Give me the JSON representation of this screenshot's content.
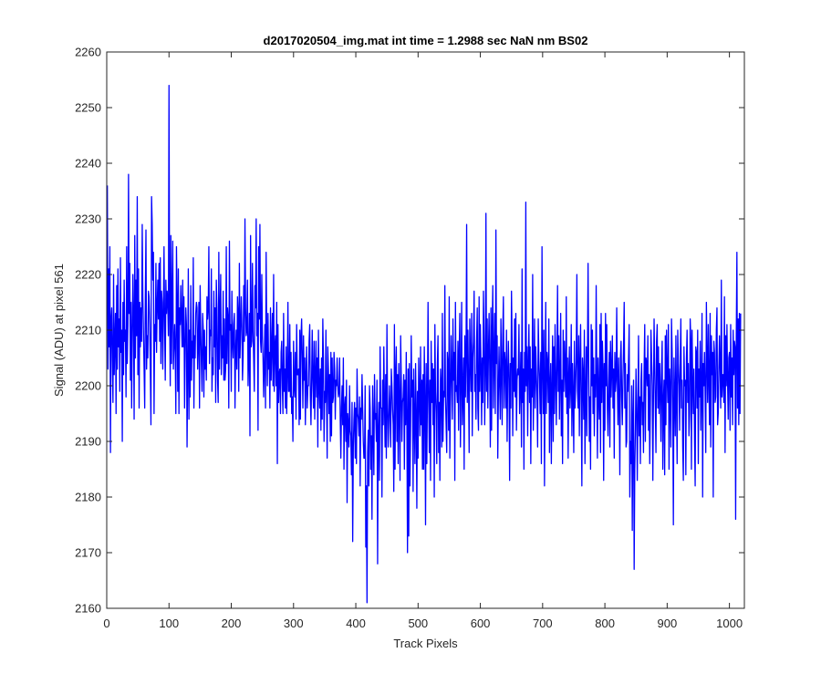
{
  "chart_data": {
    "type": "line",
    "title": "d2017020504_img.mat int time = 1.2988 sec  NaN nm BS02",
    "xlabel": "Track Pixels",
    "ylabel": "Signal (ADU) at pixel 561",
    "xlim": [
      0,
      1024
    ],
    "ylim": [
      2160,
      2260
    ],
    "xticks": [
      0,
      100,
      200,
      300,
      400,
      500,
      600,
      700,
      800,
      900,
      1000
    ],
    "yticks": [
      2160,
      2170,
      2180,
      2190,
      2200,
      2210,
      2220,
      2230,
      2240,
      2250,
      2260
    ],
    "grid": false,
    "series": [
      {
        "color": "#0000ff",
        "x_start": 1,
        "x_step": 1,
        "values": [
          2236,
          2203,
          2221,
          2207,
          2225,
          2188,
          2212,
          2214,
          2205,
          2197,
          2220,
          2202,
          2208,
          2213,
          2195,
          2218,
          2203,
          2221,
          2207,
          2212,
          2199,
          2223,
          2206,
          2210,
          2190,
          2215,
          2202,
          2219,
          2208,
          2210,
          2198,
          2225,
          2204,
          2211,
          2238,
          2213,
          2222,
          2201,
          2215,
          2196,
          2209,
          2220,
          2212,
          2194,
          2227,
          2205,
          2219,
          2209,
          2234,
          2202,
          2221,
          2196,
          2215,
          2207,
          2214,
          2208,
          2229,
          2216,
          2210,
          2203,
          2196,
          2216,
          2228,
          2203,
          2209,
          2205,
          2217,
          2216,
          2211,
          2203,
          2193,
          2234,
          2229,
          2219,
          2224,
          2195,
          2211,
          2208,
          2222,
          2206,
          2214,
          2219,
          2212,
          2222,
          2208,
          2223,
          2204,
          2217,
          2215,
          2203,
          2213,
          2225,
          2211,
          2201,
          2219,
          2213,
          2217,
          2215,
          2209,
          2254,
          2213,
          2200,
          2227,
          2204,
          2216,
          2226,
          2203,
          2207,
          2211,
          2206,
          2195,
          2225,
          2215,
          2199,
          2221,
          2195,
          2214,
          2211,
          2218,
          2212,
          2207,
          2219,
          2207,
          2216,
          2196,
          2206,
          2214,
          2211,
          2189,
          2203,
          2221,
          2194,
          2210,
          2198,
          2218,
          2201,
          2208,
          2205,
          2223,
          2196,
          2209,
          2205,
          2213,
          2215,
          2214,
          2203,
          2208,
          2215,
          2196,
          2218,
          2210,
          2204,
          2199,
          2213,
          2210,
          2198,
          2210,
          2203,
          2207,
          2201,
          2216,
          2212,
          2214,
          2225,
          2204,
          2210,
          2209,
          2221,
          2199,
          2205,
          2202,
          2217,
          2207,
          2214,
          2197,
          2219,
          2214,
          2201,
          2197,
          2224,
          2203,
          2213,
          2220,
          2202,
          2209,
          2205,
          2217,
          2201,
          2212,
          2201,
          2203,
          2225,
          2204,
          2214,
          2212,
          2196,
          2226,
          2210,
          2211,
          2199,
          2217,
          2208,
          2205,
          2211,
          2213,
          2196,
          2206,
          2210,
          2203,
          2216,
          2213,
          2199,
          2222,
          2205,
          2210,
          2216,
          2211,
          2201,
          2205,
          2218,
          2208,
          2230,
          2214,
          2209,
          2210,
          2219,
          2200,
          2205,
          2213,
          2191,
          2227,
          2207,
          2208,
          2222,
          2210,
          2205,
          2199,
          2218,
          2214,
          2230,
          2209,
          2213,
          2192,
          2225,
          2212,
          2229,
          2208,
          2206,
          2220,
          2209,
          2205,
          2198,
          2204,
          2211,
          2196,
          2224,
          2208,
          2200,
          2213,
          2203,
          2206,
          2196,
          2214,
          2201,
          2207,
          2213,
          2200,
          2220,
          2199,
          2207,
          2209,
          2200,
          2215,
          2186,
          2211,
          2197,
          2202,
          2203,
          2195,
          2206,
          2208,
          2200,
          2195,
          2213,
          2199,
          2203,
          2196,
          2207,
          2195,
          2202,
          2215,
          2199,
          2199,
          2211,
          2198,
          2206,
          2195,
          2198,
          2190,
          2208,
          2200,
          2198,
          2206,
          2194,
          2211,
          2202,
          2202,
          2203,
          2193,
          2210,
          2194,
          2209,
          2212,
          2205,
          2196,
          2209,
          2201,
          2205,
          2193,
          2202,
          2207,
          2196,
          2200,
          2200,
          2208,
          2211,
          2198,
          2193,
          2201,
          2210,
          2201,
          2196,
          2208,
          2194,
          2202,
          2208,
          2198,
          2205,
          2189,
          2210,
          2200,
          2196,
          2203,
          2192,
          2205,
          2194,
          2212,
          2205,
          2190,
          2199,
          2197,
          2210,
          2198,
          2187,
          2207,
          2203,
          2195,
          2202,
          2190,
          2206,
          2191,
          2205,
          2197,
          2198,
          2206,
          2203,
          2194,
          2201,
          2200,
          2205,
          2200,
          2198,
          2199,
          2205,
          2194,
          2187,
          2196,
          2200,
          2193,
          2205,
          2185,
          2196,
          2198,
          2190,
          2201,
          2179,
          2195,
          2193,
          2189,
          2200,
          2192,
          2191,
          2184,
          2197,
          2172,
          2189,
          2194,
          2197,
          2187,
          2196,
          2186,
          2203,
          2195,
          2194,
          2191,
          2198,
          2182,
          2196,
          2194,
          2202,
          2196,
          2190,
          2187,
          2187,
          2200,
          2171,
          2182,
          2161,
          2188,
          2192,
          2182,
          2200,
          2196,
          2185,
          2191,
          2176,
          2200,
          2193,
          2184,
          2202,
          2194,
          2195,
          2190,
          2201,
          2168,
          2192,
          2197,
          2183,
          2207,
          2196,
          2196,
          2180,
          2201,
          2193,
          2207,
          2197,
          2189,
          2202,
          2187,
          2211,
          2196,
          2189,
          2194,
          2200,
          2195,
          2189,
          2203,
          2200,
          2196,
          2193,
          2181,
          2211,
          2185,
          2202,
          2207,
          2190,
          2202,
          2186,
          2204,
          2197,
          2183,
          2209,
          2201,
          2190,
          2197,
          2198,
          2202,
          2185,
          2201,
          2193,
          2206,
          2194,
          2170,
          2203,
          2173,
          2204,
          2182,
          2193,
          2209,
          2198,
          2201,
          2181,
          2203,
          2194,
          2186,
          2204,
          2195,
          2178,
          2199,
          2187,
          2205,
          2198,
          2191,
          2207,
          2193,
          2201,
          2185,
          2202,
          2185,
          2207,
          2197,
          2175,
          2204,
          2186,
          2198,
          2215,
          2198,
          2188,
          2201,
          2183,
          2208,
          2197,
          2204,
          2193,
          2203,
          2180,
          2211,
          2199,
          2195,
          2186,
          2204,
          2209,
          2188,
          2197,
          2183,
          2203,
          2200,
          2189,
          2213,
          2190,
          2199,
          2198,
          2218,
          2198,
          2193,
          2188,
          2206,
          2204,
          2192,
          2216,
          2187,
          2198,
          2209,
          2202,
          2194,
          2212,
          2201,
          2206,
          2183,
          2215,
          2199,
          2200,
          2197,
          2208,
          2192,
          2206,
          2213,
          2189,
          2201,
          2215,
          2193,
          2199,
          2205,
          2185,
          2209,
          2198,
          2205,
          2229,
          2197,
          2210,
          2200,
          2188,
          2212,
          2205,
          2199,
          2213,
          2191,
          2205,
          2208,
          2217,
          2199,
          2202,
          2194,
          2208,
          2214,
          2196,
          2192,
          2216,
          2199,
          2211,
          2204,
          2193,
          2205,
          2197,
          2217,
          2208,
          2193,
          2202,
          2231,
          2199,
          2212,
          2196,
          2206,
          2213,
          2203,
          2189,
          2214,
          2192,
          2210,
          2218,
          2196,
          2205,
          2213,
          2195,
          2228,
          2204,
          2209,
          2187,
          2199,
          2207,
          2200,
          2194,
          2212,
          2203,
          2193,
          2209,
          2216,
          2196,
          2206,
          2204,
          2196,
          2210,
          2190,
          2202,
          2208,
          2201,
          2183,
          2204,
          2196,
          2217,
          2208,
          2191,
          2205,
          2199,
          2212,
          2198,
          2213,
          2192,
          2201,
          2203,
          2202,
          2211,
          2195,
          2200,
          2206,
          2189,
          2221,
          2197,
          2203,
          2185,
          2206,
          2199,
          2233,
          2200,
          2207,
          2191,
          2204,
          2211,
          2197,
          2207,
          2186,
          2203,
          2198,
          2220,
          2192,
          2201,
          2212,
          2196,
          2207,
          2202,
          2198,
          2189,
          2212,
          2205,
          2201,
          2195,
          2206,
          2186,
          2225,
          2204,
          2195,
          2210,
          2182,
          2200,
          2215,
          2195,
          2206,
          2204,
          2197,
          2212,
          2188,
          2200,
          2204,
          2186,
          2199,
          2209,
          2190,
          2207,
          2195,
          2211,
          2202,
          2193,
          2204,
          2218,
          2199,
          2209,
          2194,
          2202,
          2213,
          2191,
          2201,
          2186,
          2210,
          2199,
          2208,
          2203,
          2198,
          2216,
          2195,
          2205,
          2187,
          2202,
          2207,
          2196,
          2200,
          2211,
          2191,
          2204,
          2198,
          2188,
          2208,
          2196,
          2200,
          2205,
          2220,
          2199,
          2196,
          2209,
          2191,
          2204,
          2211,
          2197,
          2182,
          2205,
          2202,
          2194,
          2210,
          2186,
          2198,
          2207,
          2191,
          2205,
          2222,
          2204,
          2190,
          2198,
          2185,
          2211,
          2200,
          2210,
          2195,
          2205,
          2191,
          2202,
          2198,
          2218,
          2201,
          2187,
          2205,
          2198,
          2194,
          2211,
          2188,
          2213,
          2197,
          2208,
          2203,
          2183,
          2204,
          2192,
          2213,
          2200,
          2211,
          2196,
          2191,
          2200,
          2206,
          2189,
          2208,
          2198,
          2203,
          2209,
          2196,
          2203,
          2187,
          2206,
          2199,
          2201,
          2214,
          2201,
          2193,
          2205,
          2198,
          2184,
          2205,
          2208,
          2198,
          2193,
          2201,
          2207,
          2215,
          2196,
          2204,
          2189,
          2190,
          2202,
          2199,
          2205,
          2211,
          2180,
          2190,
          2186,
          2200,
          2174,
          2194,
          2201,
          2167,
          2185,
          2192,
          2203,
          2196,
          2183,
          2195,
          2209,
          2191,
          2198,
          2186,
          2201,
          2204,
          2193,
          2197,
          2188,
          2203,
          2211,
          2190,
          2205,
          2204,
          2200,
          2209,
          2192,
          2202,
          2186,
          2196,
          2210,
          2205,
          2200,
          2183,
          2198,
          2212,
          2204,
          2196,
          2188,
          2208,
          2211,
          2196,
          2207,
          2195,
          2204,
          2199,
          2190,
          2203,
          2208,
          2185,
          2197,
          2201,
          2184,
          2209,
          2193,
          2210,
          2202,
          2197,
          2211,
          2185,
          2203,
          2199,
          2189,
          2212,
          2206,
          2196,
          2175,
          2205,
          2198,
          2191,
          2209,
          2197,
          2186,
          2210,
          2204,
          2200,
          2192,
          2205,
          2212,
          2196,
          2201,
          2189,
          2183,
          2207,
          2200,
          2201,
          2184,
          2205,
          2210,
          2197,
          2204,
          2191,
          2195,
          2212,
          2208,
          2185,
          2210,
          2201,
          2195,
          2203,
          2190,
          2182,
          2207,
          2206,
          2196,
          2210,
          2186,
          2203,
          2198,
          2208,
          2192,
          2199,
          2213,
          2180,
          2204,
          2200,
          2206,
          2199,
          2188,
          2215,
          2205,
          2197,
          2211,
          2201,
          2193,
          2213,
          2189,
          2209,
          2202,
          2206,
          2180,
          2208,
          2206,
          2197,
          2198,
          2210,
          2214,
          2193,
          2195,
          2203,
          2209,
          2203,
          2196,
          2219,
          2198,
          2202,
          2202,
          2197,
          2216,
          2188,
          2209,
          2200,
          2211,
          2201,
          2194,
          2205,
          2206,
          2192,
          2211,
          2198,
          2205,
          2193,
          2210,
          2202,
          2208,
          2207,
          2176,
          2209,
          2224,
          2196,
          2212,
          2193,
          2213,
          2195,
          2213
        ]
      }
    ]
  }
}
